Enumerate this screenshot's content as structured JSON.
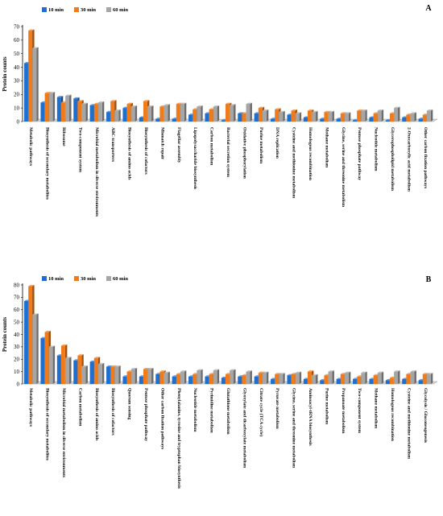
{
  "chart_data": [
    {
      "panel_label": "A",
      "type": "bar",
      "ylabel": "Protein counts",
      "ylim": [
        0,
        70
      ],
      "yticks": [
        0,
        10,
        20,
        30,
        40,
        50,
        60,
        70
      ],
      "legend_position": "top",
      "categories": [
        "Metabolic pathways",
        "Biosynthesis of secondary metabolites",
        "Ribosome",
        "Two-component system",
        "Microbial metabolism in diverse environments",
        "ABC transporters",
        "Biosynthesis of amino acids",
        "Biosynthesis of cofactors",
        "Mismatch repair",
        "Flagellar assembly",
        "Lipopolysaccharide biosynthesis",
        "Carbon metabolism",
        "Bacterial secretion system",
        "Oxidative phosphorylation",
        "Purine metabolism",
        "DNA replication",
        "Cysteine and methionine metabolism",
        "Homologous recombination",
        "Methane metabolism",
        "Glycine, serine and threonine metabolism",
        "Pentose phosphate pathway",
        "Nucleotide metabolism",
        "Glycerophospholipid metabolism",
        "2-Oxocarboxylic acid metabolism",
        "Other carbon fixation pathways"
      ],
      "series": [
        {
          "name": "10 min",
          "color": "#1f6fd1",
          "values": [
            43,
            14,
            18,
            17,
            12,
            7,
            10,
            3,
            2,
            2,
            5,
            6,
            1,
            6,
            6,
            2,
            5,
            3,
            2,
            2,
            1,
            3,
            1,
            3,
            2
          ]
        },
        {
          "name": "30 min",
          "color": "#f07b1a",
          "values": [
            67,
            21,
            14,
            15,
            13,
            15,
            13,
            15,
            11,
            13,
            9,
            9,
            13,
            6,
            10,
            9,
            8,
            8,
            7,
            6,
            8,
            6,
            6,
            5,
            5
          ]
        },
        {
          "name": "60 min",
          "color": "#a6a6a6",
          "values": [
            54,
            21,
            19,
            13,
            14,
            8,
            11,
            11,
            12,
            13,
            11,
            11,
            12,
            13,
            8,
            7,
            6,
            7,
            7,
            6,
            8,
            8,
            10,
            6,
            8
          ]
        }
      ]
    },
    {
      "panel_label": "B",
      "type": "bar",
      "ylabel": "Protein counts",
      "ylim": [
        0,
        80
      ],
      "yticks": [
        0,
        10,
        20,
        30,
        40,
        50,
        60,
        70,
        80
      ],
      "legend_position": "top",
      "categories": [
        "Metabolic pathways",
        "Biosynthesis of secondary metabolites",
        "Microbial metabolism in diverse environments",
        "Carbon metabolism",
        "Biosynthesis of amino acids",
        "Biosynthesis of cofactors",
        "Quorum sensing",
        "Pentose phosphate pathway",
        "Other carbon fixation pathways",
        "Phenylalanine, tyrosine and tryptophan biosynthesis",
        "Nucleotide metabolism",
        "Pyrimidine metabolism",
        "Glutathione metabolism",
        "Glyoxylate and dicarboxylate metabolism",
        "Citrate cycle (TCA cycle)",
        "Pyruvate metabolism",
        "Glycine, serine and threonine metabolism",
        "Aminoacyl-tRNA biosynthesis",
        "Purine metabolism",
        "Propanoate metabolism",
        "Two-component system",
        "Methane metabolism",
        "Homologous recombination",
        "Cysteine and methionine metabolism",
        "Glycolysis / Gluconeogenesis"
      ],
      "series": [
        {
          "name": "10 min",
          "color": "#1f6fd1",
          "values": [
            67,
            37,
            23,
            19,
            18,
            14,
            6,
            6,
            8,
            6,
            6,
            6,
            5,
            6,
            6,
            4,
            7,
            4,
            3,
            4,
            4,
            4,
            3,
            4,
            3
          ]
        },
        {
          "name": "30 min",
          "color": "#f07b1a",
          "values": [
            79,
            42,
            31,
            23,
            21,
            14,
            10,
            12,
            10,
            8,
            8,
            8,
            8,
            7,
            9,
            8,
            8,
            10,
            7,
            8,
            6,
            7,
            5,
            8,
            8
          ]
        },
        {
          "name": "60 min",
          "color": "#a6a6a6",
          "values": [
            56,
            30,
            21,
            14,
            16,
            14,
            12,
            12,
            9,
            10,
            11,
            11,
            11,
            10,
            9,
            8,
            9,
            7,
            10,
            9,
            9,
            9,
            10,
            10,
            8
          ]
        }
      ]
    }
  ]
}
